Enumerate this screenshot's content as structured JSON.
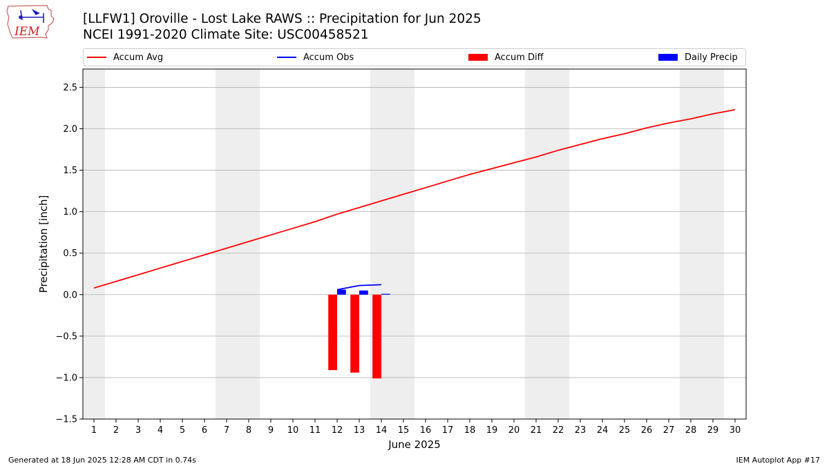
{
  "header": {
    "title_line1": "[LLFW1] Oroville - Lost Lake RAWS :: Precipitation for Jun 2025",
    "title_line2": "NCEI 1991-2020 Climate Site: USC00458521"
  },
  "logo": {
    "text": "IEM"
  },
  "footer": {
    "generated": "Generated at 18 Jun 2025 12:28 AM CDT in 0.74s",
    "app": "IEM Autoplot App #17"
  },
  "chart_data": {
    "type": "line",
    "xlabel": "June 2025",
    "ylabel": "Precipitation [inch]",
    "xlim": [
      0.5,
      30.5
    ],
    "ylim": [
      -1.5,
      2.72
    ],
    "yticks": [
      -1.5,
      -1.0,
      -0.5,
      0.0,
      0.5,
      1.0,
      1.5,
      2.0,
      2.5
    ],
    "ytick_labels": [
      "−1.5",
      "−1.0",
      "−0.5",
      "0.0",
      "0.5",
      "1.0",
      "1.5",
      "2.0",
      "2.5"
    ],
    "xticks": [
      1,
      2,
      3,
      4,
      5,
      6,
      7,
      8,
      9,
      10,
      11,
      12,
      13,
      14,
      15,
      16,
      17,
      18,
      19,
      20,
      21,
      22,
      23,
      24,
      25,
      26,
      27,
      28,
      29,
      30
    ],
    "grid": true,
    "legend_placement": "top",
    "weekend_shading": [
      [
        0.5,
        1.5
      ],
      [
        6.5,
        8.5
      ],
      [
        13.5,
        15.5
      ],
      [
        20.5,
        22.5
      ],
      [
        27.5,
        29.5
      ]
    ],
    "colors": {
      "accum_avg": "#ff0000",
      "accum_obs": "#0000ff",
      "accum_diff": "#ff0000",
      "daily_precip": "#0000ff",
      "weekend": "#eeeeee",
      "grid": "#b0b0b0"
    },
    "series": [
      {
        "name": "Accum Avg",
        "kind": "line",
        "x": [
          1,
          2,
          3,
          4,
          5,
          6,
          7,
          8,
          9,
          10,
          11,
          12,
          13,
          14,
          15,
          16,
          17,
          18,
          19,
          20,
          21,
          22,
          23,
          24,
          25,
          26,
          27,
          28,
          29,
          30
        ],
        "values": [
          0.08,
          0.16,
          0.24,
          0.32,
          0.4,
          0.48,
          0.56,
          0.64,
          0.72,
          0.8,
          0.88,
          0.97,
          1.05,
          1.13,
          1.21,
          1.29,
          1.37,
          1.45,
          1.52,
          1.59,
          1.66,
          1.74,
          1.81,
          1.88,
          1.94,
          2.01,
          2.07,
          2.12,
          2.18,
          2.23
        ]
      },
      {
        "name": "Accum Obs",
        "kind": "line",
        "x": [
          12,
          13,
          14
        ],
        "values": [
          0.06,
          0.11,
          0.12
        ]
      },
      {
        "name": "Accum Diff",
        "kind": "bar",
        "x": [
          12,
          13,
          14
        ],
        "values": [
          -0.91,
          -0.94,
          -1.01
        ]
      },
      {
        "name": "Daily Precip",
        "kind": "bar",
        "x": [
          12,
          13,
          14
        ],
        "values": [
          0.06,
          0.05,
          0.01
        ]
      }
    ]
  }
}
